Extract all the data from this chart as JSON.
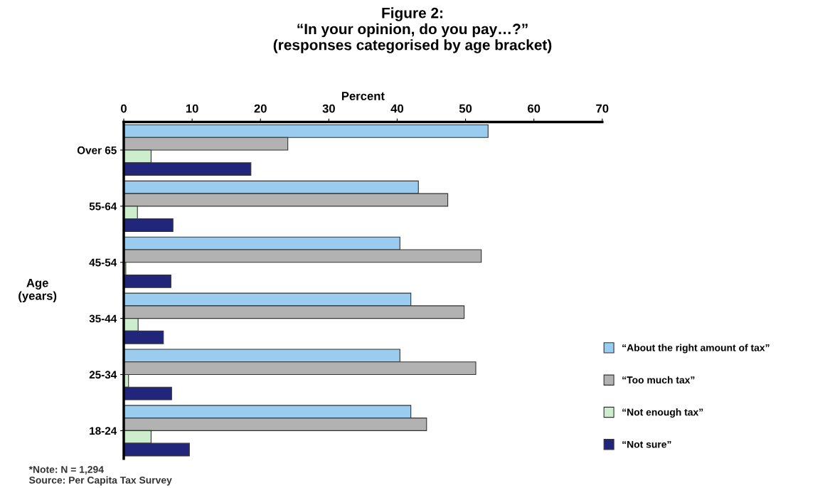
{
  "chart_data": {
    "type": "bar",
    "orientation": "horizontal",
    "title": "Figure 2:\n“In your opinion, do you pay…?”\n(responses categorised by age bracket)",
    "xlabel": "Percent",
    "ylabel": "Age\n(years)",
    "categories": [
      "Over 65",
      "55-64",
      "45-54",
      "35-44",
      "25-34",
      "18-24"
    ],
    "series": [
      {
        "name": "“About the right amount of tax”",
        "color": "#99ccee",
        "values": [
          53.3,
          43.1,
          40.4,
          42.0,
          40.4,
          42.0
        ]
      },
      {
        "name": "“Too much tax”",
        "color": "#b2b2b2",
        "values": [
          24.0,
          47.4,
          52.3,
          49.8,
          51.5,
          44.3
        ]
      },
      {
        "name": "“Not enough tax”",
        "color": "#cceecc",
        "values": [
          4.0,
          2.0,
          0.3,
          2.1,
          0.7,
          4.0
        ]
      },
      {
        "name": "“Not sure”",
        "color": "#22267a",
        "values": [
          18.6,
          7.2,
          6.9,
          5.8,
          7.0,
          9.6
        ]
      }
    ],
    "xlim": [
      0,
      70
    ],
    "xticks": [
      0,
      10,
      20,
      30,
      40,
      50,
      60,
      70
    ],
    "grid": false,
    "legend": "bottom right",
    "annotations": [
      "*Note: N = 1,294\nSource: Per Capita Tax Survey"
    ]
  }
}
